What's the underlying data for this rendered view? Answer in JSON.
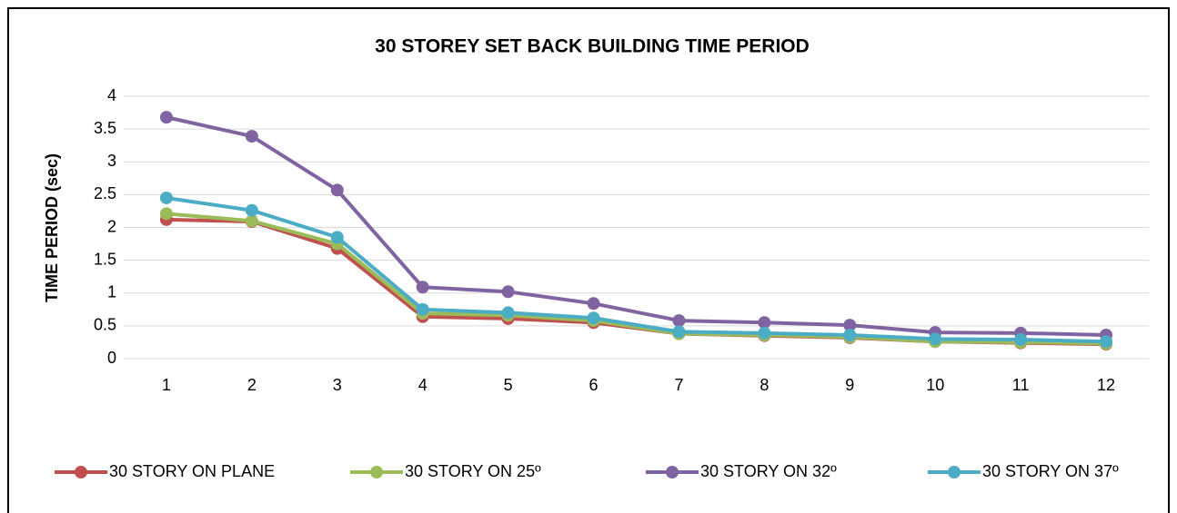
{
  "chart_data": {
    "type": "line",
    "title": "30 STOREY SET BACK BUILDING TIME PERIOD",
    "y_label": "TIME PERIOD (sec)",
    "categories": [
      "1",
      "2",
      "3",
      "4",
      "5",
      "6",
      "7",
      "8",
      "9",
      "10",
      "11",
      "12"
    ],
    "series": [
      {
        "name": "30 STORY ON PLANE",
        "color": "#c0504d",
        "values": [
          2.12,
          2.09,
          1.68,
          0.64,
          0.61,
          0.55,
          0.38,
          0.35,
          0.32,
          0.26,
          0.24,
          0.22
        ]
      },
      {
        "name": "30 STORY ON 25º",
        "color": "#9bbb59",
        "values": [
          2.21,
          2.1,
          1.75,
          0.69,
          0.66,
          0.58,
          0.38,
          0.36,
          0.33,
          0.26,
          0.25,
          0.23
        ]
      },
      {
        "name": "30 STORY ON 32º",
        "color": "#8064a2",
        "values": [
          3.68,
          3.39,
          2.57,
          1.09,
          1.02,
          0.84,
          0.58,
          0.55,
          0.51,
          0.4,
          0.39,
          0.36
        ]
      },
      {
        "name": "30 STORY ON 37º",
        "color": "#4bacc6",
        "values": [
          2.45,
          2.26,
          1.85,
          0.75,
          0.7,
          0.62,
          0.41,
          0.39,
          0.36,
          0.3,
          0.29,
          0.26
        ]
      }
    ],
    "ylim": [
      0,
      4
    ],
    "yticks": [
      0,
      0.5,
      1,
      1.5,
      2,
      2.5,
      3,
      3.5,
      4
    ],
    "grid": true,
    "legend": "bottom"
  }
}
